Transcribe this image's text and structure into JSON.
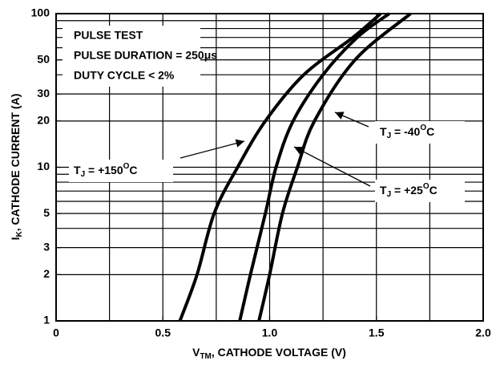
{
  "chart_data": {
    "type": "line",
    "ylog": true,
    "grid": true,
    "color": "#000000",
    "xlim": [
      0,
      2
    ],
    "ylim": [
      1,
      100
    ],
    "xticks": [
      0,
      0.5,
      {
        "value": 1,
        "label": "1.0"
      },
      1.5,
      {
        "value": 2,
        "label": "2.0"
      }
    ],
    "yticks": [
      1,
      2,
      3,
      5,
      10,
      20,
      30,
      50,
      100
    ],
    "xgrid": [
      0.25,
      0.5,
      0.75,
      1,
      1.25,
      1.5,
      1.75
    ],
    "ygrid": [
      2,
      3,
      4,
      5,
      6,
      7,
      8,
      9,
      10,
      20,
      30,
      40,
      50,
      60,
      70,
      80,
      90
    ],
    "xlabel": {
      "main": "V",
      "sub": "TM",
      "rest": ", CATHODE VOLTAGE (V)"
    },
    "ylabel": {
      "main": "I",
      "sub": "K",
      "rest": ", CATHODE CURRENT (A)"
    },
    "notes": [
      "PULSE TEST",
      "PULSE DURATION = 250μs",
      "DUTY CYCLE < 2%"
    ],
    "series": [
      {
        "name": {
          "main": "T",
          "sub": "J",
          "mid": " = +150",
          "sup": "O",
          "end": "C"
        },
        "x": [
          0.58,
          0.66,
          0.74,
          0.85,
          0.98,
          1.16,
          1.39,
          1.52
        ],
        "values": [
          1,
          2,
          5,
          10,
          20,
          40,
          70,
          100
        ]
      },
      {
        "name": {
          "main": "T",
          "sub": "J",
          "mid": " = +25",
          "sup": "O",
          "end": "C"
        },
        "x": [
          0.86,
          0.91,
          0.98,
          1.03,
          1.11,
          1.25,
          1.41,
          1.56
        ],
        "values": [
          1,
          2,
          5,
          10,
          20,
          40,
          70,
          100
        ]
      },
      {
        "name": {
          "main": "T",
          "sub": "J",
          "mid": " = -40",
          "sup": "O",
          "end": "C"
        },
        "x": [
          0.95,
          1.0,
          1.06,
          1.13,
          1.21,
          1.4,
          1.66
        ],
        "values": [
          1,
          2,
          5,
          10,
          20,
          50,
          100
        ]
      }
    ]
  }
}
